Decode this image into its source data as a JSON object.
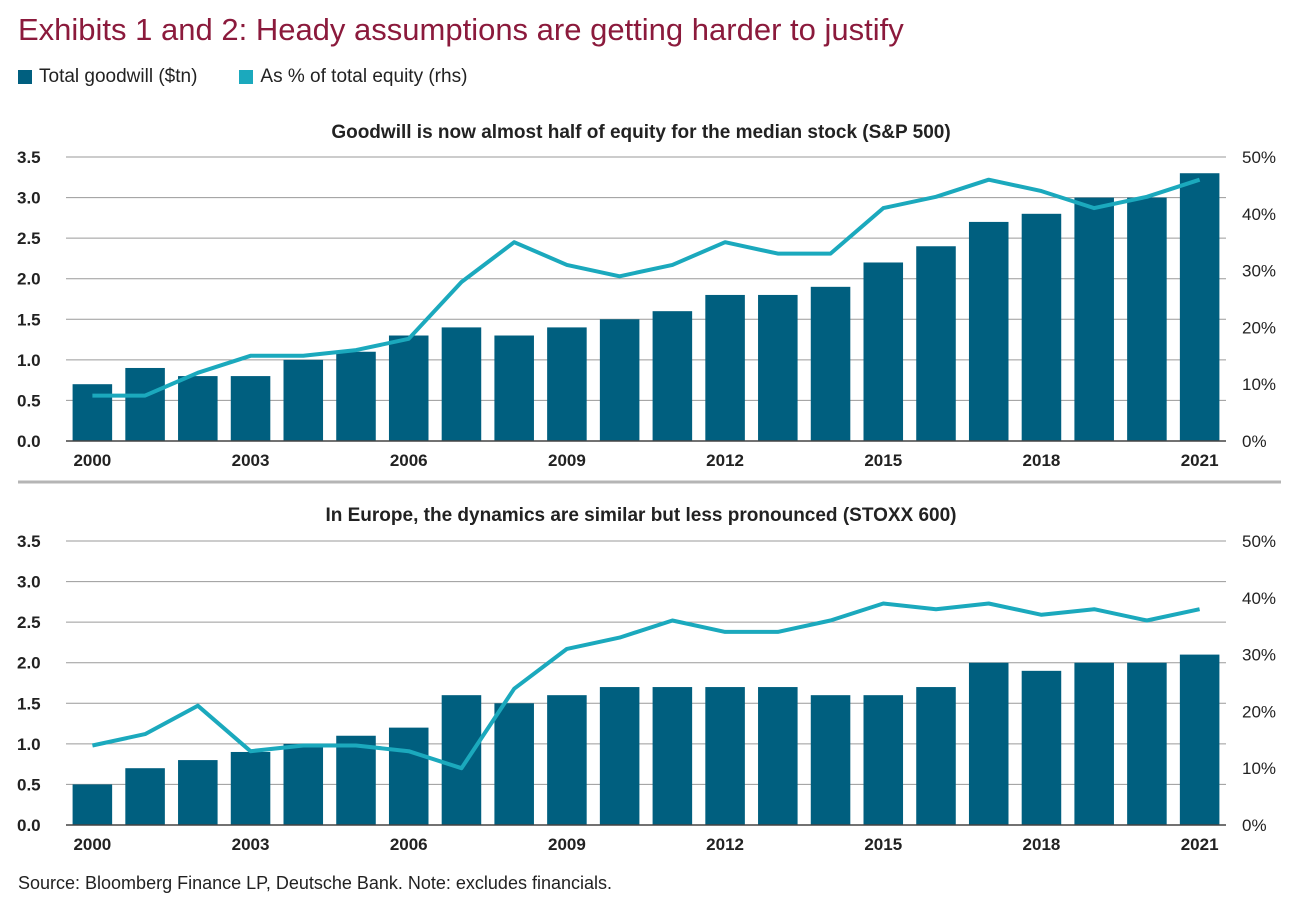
{
  "title": "Exhibits 1 and 2: Heady assumptions are getting harder to justify",
  "legend": {
    "bar_label": "Total goodwill ($tn)",
    "line_label": "As % of total equity (rhs)"
  },
  "colors": {
    "bar": "#005f7f",
    "line": "#1ba9bd",
    "title": "#8b1a3c",
    "grid": "#9a9a9a"
  },
  "source": "Source: Bloomberg Finance LP, Deutsche Bank. Note: excludes financials.",
  "chart_data": [
    {
      "type": "bar",
      "title": "Goodwill is now almost half of equity for the median stock (S&P 500)",
      "x": [
        2000,
        2001,
        2002,
        2003,
        2004,
        2005,
        2006,
        2007,
        2008,
        2009,
        2010,
        2011,
        2012,
        2013,
        2014,
        2015,
        2016,
        2017,
        2018,
        2019,
        2020,
        2021
      ],
      "x_tick_labels": [
        "2000",
        "2003",
        "2006",
        "2009",
        "2012",
        "2015",
        "2018",
        "2021"
      ],
      "y_tick_labels": [
        "0.0",
        "0.5",
        "1.0",
        "1.5",
        "2.0",
        "2.5",
        "3.0",
        "3.5"
      ],
      "y2_tick_labels": [
        "0%",
        "10%",
        "20%",
        "30%",
        "40%",
        "50%"
      ],
      "ylim": [
        0,
        3.5
      ],
      "y2lim": [
        0,
        50
      ],
      "series": [
        {
          "name": "Total goodwill ($tn)",
          "kind": "bar",
          "axis": "left",
          "values": [
            0.7,
            0.9,
            0.8,
            0.8,
            1.0,
            1.1,
            1.3,
            1.4,
            1.3,
            1.4,
            1.5,
            1.6,
            1.8,
            1.8,
            1.9,
            2.2,
            2.4,
            2.7,
            2.8,
            3.0,
            3.0,
            3.3
          ]
        },
        {
          "name": "As % of total equity (rhs)",
          "kind": "line",
          "axis": "right",
          "values": [
            8,
            8,
            12,
            15,
            15,
            16,
            18,
            28,
            35,
            31,
            29,
            31,
            35,
            33,
            33,
            41,
            43,
            46,
            44,
            41,
            43,
            46
          ]
        }
      ],
      "grid": true
    },
    {
      "type": "bar",
      "title": "In Europe, the dynamics are similar but less pronounced (STOXX 600)",
      "x": [
        2000,
        2001,
        2002,
        2003,
        2004,
        2005,
        2006,
        2007,
        2008,
        2009,
        2010,
        2011,
        2012,
        2013,
        2014,
        2015,
        2016,
        2017,
        2018,
        2019,
        2020,
        2021
      ],
      "x_tick_labels": [
        "2000",
        "2003",
        "2006",
        "2009",
        "2012",
        "2015",
        "2018",
        "2021"
      ],
      "y_tick_labels": [
        "0.0",
        "0.5",
        "1.0",
        "1.5",
        "2.0",
        "2.5",
        "3.0",
        "3.5"
      ],
      "y2_tick_labels": [
        "0%",
        "10%",
        "20%",
        "30%",
        "40%",
        "50%"
      ],
      "ylim": [
        0,
        3.5
      ],
      "y2lim": [
        0,
        50
      ],
      "series": [
        {
          "name": "Total goodwill ($tn)",
          "kind": "bar",
          "axis": "left",
          "values": [
            0.5,
            0.7,
            0.8,
            0.9,
            1.0,
            1.1,
            1.2,
            1.6,
            1.5,
            1.6,
            1.7,
            1.7,
            1.7,
            1.7,
            1.6,
            1.6,
            1.7,
            2.0,
            1.9,
            2.0,
            2.0,
            2.1
          ]
        },
        {
          "name": "As % of total equity (rhs)",
          "kind": "line",
          "axis": "right",
          "values": [
            14,
            16,
            21,
            13,
            14,
            14,
            13,
            10,
            24,
            31,
            33,
            36,
            34,
            34,
            36,
            39,
            38,
            39,
            37,
            38,
            36,
            38
          ]
        }
      ],
      "grid": true
    }
  ]
}
